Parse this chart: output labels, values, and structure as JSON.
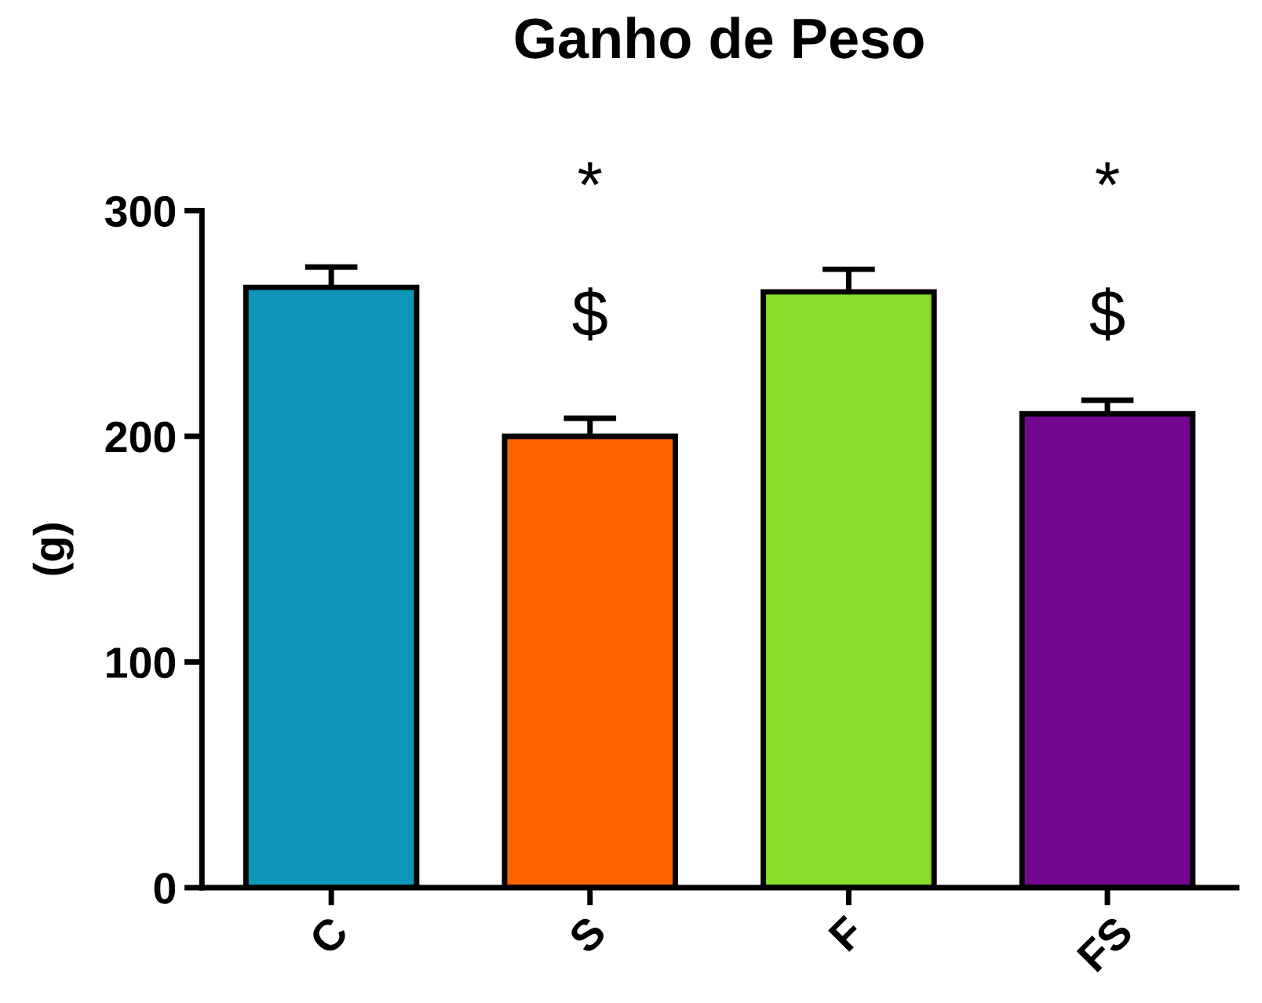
{
  "chart_data": {
    "type": "bar",
    "title": "Ganho de Peso",
    "ylabel": "(g)",
    "categories": [
      "C",
      "S",
      "F",
      "FS"
    ],
    "values": [
      266,
      200,
      264,
      210
    ],
    "errors": [
      9,
      8,
      10,
      6
    ],
    "colors": [
      "#0d96b8",
      "#ff6600",
      "#88dd2a",
      "#73078f"
    ],
    "ylim": [
      0,
      300
    ],
    "yticks": [
      0,
      100,
      200,
      300
    ],
    "grid": false,
    "annotations": [
      "*",
      "$",
      "*",
      "$"
    ]
  }
}
